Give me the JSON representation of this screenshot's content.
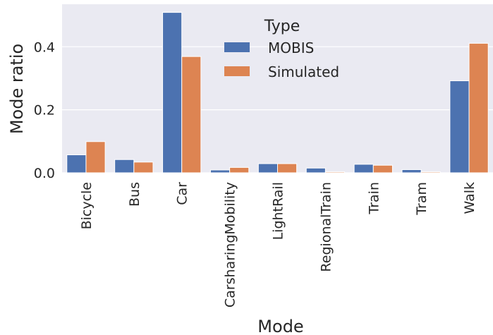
{
  "chart_data": {
    "type": "bar",
    "categories": [
      "Bicycle",
      "Bus",
      "Car",
      "CarsharingMobility",
      "LightRail",
      "RegionalTrain",
      "Train",
      "Tram",
      "Walk"
    ],
    "series": [
      {
        "name": "MOBIS",
        "values": [
          0.057,
          0.042,
          0.509,
          0.009,
          0.029,
          0.015,
          0.027,
          0.01,
          0.292
        ],
        "color": "#4c72b0"
      },
      {
        "name": "Simulated",
        "values": [
          0.099,
          0.034,
          0.369,
          0.017,
          0.029,
          0.003,
          0.024,
          0.003,
          0.411
        ],
        "color": "#dd8452"
      }
    ],
    "xlabel": "Mode",
    "ylabel": "Mode ratio",
    "ylim": [
      0,
      0.535
    ],
    "yticks": [
      0.0,
      0.2,
      0.4
    ],
    "ytick_labels": [
      "0.0",
      "0.2",
      "0.4"
    ],
    "legend": {
      "title": "Type",
      "placement": "top-center"
    },
    "grid": true,
    "background": "#eaeaf2",
    "grid_color": "#ffffff"
  }
}
